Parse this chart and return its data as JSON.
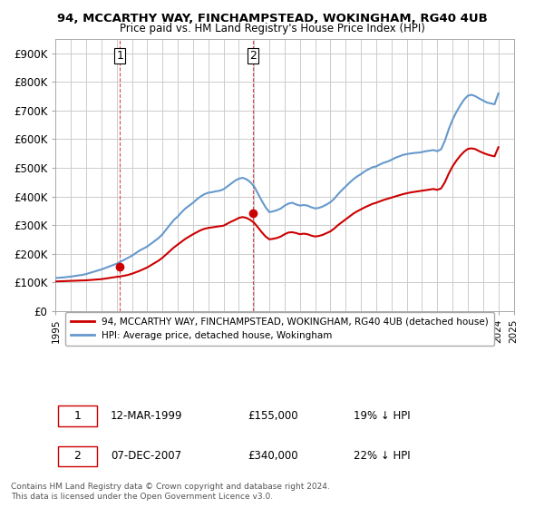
{
  "title_line1": "94, MCCARTHY WAY, FINCHAMPSTEAD, WOKINGHAM, RG40 4UB",
  "title_line2": "Price paid vs. HM Land Registry's House Price Index (HPI)",
  "xlabel": "",
  "ylabel": "",
  "ylim": [
    0,
    950000
  ],
  "yticks": [
    0,
    100000,
    200000,
    300000,
    400000,
    500000,
    600000,
    700000,
    800000,
    900000
  ],
  "ytick_labels": [
    "£0",
    "£100K",
    "£200K",
    "£300K",
    "£400K",
    "£500K",
    "£600K",
    "£700K",
    "£800K",
    "£900K"
  ],
  "hpi_color": "#6699cc",
  "price_color": "#cc0000",
  "annotation_color": "#cc0000",
  "grid_color": "#cccccc",
  "background_color": "#ffffff",
  "legend_label_red": "94, MCCARTHY WAY, FINCHAMPSTEAD, WOKINGHAM, RG40 4UB (detached house)",
  "legend_label_blue": "HPI: Average price, detached house, Wokingham",
  "footer": "Contains HM Land Registry data © Crown copyright and database right 2024.\nThis data is licensed under the Open Government Licence v3.0.",
  "sale1_label": "1",
  "sale1_date": "12-MAR-1999",
  "sale1_price": "£155,000",
  "sale1_hpi": "19% ↓ HPI",
  "sale1_x": 1999.2,
  "sale1_y": 155000,
  "sale2_label": "2",
  "sale2_date": "07-DEC-2007",
  "sale2_price": "£340,000",
  "sale2_hpi": "22% ↓ HPI",
  "sale2_x": 2007.92,
  "sale2_y": 340000,
  "hpi_years": [
    1995.0,
    1995.25,
    1995.5,
    1995.75,
    1996.0,
    1996.25,
    1996.5,
    1996.75,
    1997.0,
    1997.25,
    1997.5,
    1997.75,
    1998.0,
    1998.25,
    1998.5,
    1998.75,
    1999.0,
    1999.25,
    1999.5,
    1999.75,
    2000.0,
    2000.25,
    2000.5,
    2000.75,
    2001.0,
    2001.25,
    2001.5,
    2001.75,
    2002.0,
    2002.25,
    2002.5,
    2002.75,
    2003.0,
    2003.25,
    2003.5,
    2003.75,
    2004.0,
    2004.25,
    2004.5,
    2004.75,
    2005.0,
    2005.25,
    2005.5,
    2005.75,
    2006.0,
    2006.25,
    2006.5,
    2006.75,
    2007.0,
    2007.25,
    2007.5,
    2007.75,
    2008.0,
    2008.25,
    2008.5,
    2008.75,
    2009.0,
    2009.25,
    2009.5,
    2009.75,
    2010.0,
    2010.25,
    2010.5,
    2010.75,
    2011.0,
    2011.25,
    2011.5,
    2011.75,
    2012.0,
    2012.25,
    2012.5,
    2012.75,
    2013.0,
    2013.25,
    2013.5,
    2013.75,
    2014.0,
    2014.25,
    2014.5,
    2014.75,
    2015.0,
    2015.25,
    2015.5,
    2015.75,
    2016.0,
    2016.25,
    2016.5,
    2016.75,
    2017.0,
    2017.25,
    2017.5,
    2017.75,
    2018.0,
    2018.25,
    2018.5,
    2018.75,
    2019.0,
    2019.25,
    2019.5,
    2019.75,
    2020.0,
    2020.25,
    2020.5,
    2020.75,
    2021.0,
    2021.25,
    2021.5,
    2021.75,
    2022.0,
    2022.25,
    2022.5,
    2022.75,
    2023.0,
    2023.25,
    2023.5,
    2023.75,
    2024.0
  ],
  "hpi_values": [
    115000,
    116000,
    117000,
    118500,
    120000,
    122000,
    124000,
    126000,
    129000,
    133000,
    137000,
    141000,
    145000,
    150000,
    155000,
    160000,
    165000,
    172000,
    179000,
    186000,
    193000,
    202000,
    211000,
    218000,
    225000,
    235000,
    245000,
    255000,
    268000,
    285000,
    302000,
    318000,
    330000,
    345000,
    358000,
    368000,
    378000,
    390000,
    400000,
    408000,
    413000,
    415000,
    418000,
    420000,
    425000,
    435000,
    445000,
    455000,
    462000,
    465000,
    460000,
    450000,
    435000,
    410000,
    385000,
    362000,
    345000,
    348000,
    352000,
    358000,
    368000,
    375000,
    378000,
    372000,
    368000,
    370000,
    368000,
    362000,
    358000,
    360000,
    365000,
    372000,
    380000,
    392000,
    408000,
    422000,
    435000,
    448000,
    460000,
    470000,
    478000,
    488000,
    495000,
    502000,
    505000,
    512000,
    518000,
    522000,
    528000,
    535000,
    540000,
    545000,
    548000,
    550000,
    552000,
    553000,
    555000,
    558000,
    560000,
    562000,
    558000,
    565000,
    595000,
    635000,
    668000,
    695000,
    718000,
    738000,
    752000,
    755000,
    750000,
    742000,
    735000,
    728000,
    725000,
    722000,
    760000
  ],
  "price_years": [
    1995.0,
    1995.25,
    1995.5,
    1995.75,
    1996.0,
    1996.25,
    1996.5,
    1996.75,
    1997.0,
    1997.25,
    1997.5,
    1997.75,
    1998.0,
    1998.25,
    1998.5,
    1998.75,
    1999.0,
    1999.25,
    1999.5,
    1999.75,
    2000.0,
    2000.25,
    2000.5,
    2000.75,
    2001.0,
    2001.25,
    2001.5,
    2001.75,
    2002.0,
    2002.25,
    2002.5,
    2002.75,
    2003.0,
    2003.25,
    2003.5,
    2003.75,
    2004.0,
    2004.25,
    2004.5,
    2004.75,
    2005.0,
    2005.25,
    2005.5,
    2005.75,
    2006.0,
    2006.25,
    2006.5,
    2006.75,
    2007.0,
    2007.25,
    2007.5,
    2007.75,
    2008.0,
    2008.25,
    2008.5,
    2008.75,
    2009.0,
    2009.25,
    2009.5,
    2009.75,
    2010.0,
    2010.25,
    2010.5,
    2010.75,
    2011.0,
    2011.25,
    2011.5,
    2011.75,
    2012.0,
    2012.25,
    2012.5,
    2012.75,
    2013.0,
    2013.25,
    2013.5,
    2013.75,
    2014.0,
    2014.25,
    2014.5,
    2014.75,
    2015.0,
    2015.25,
    2015.5,
    2015.75,
    2016.0,
    2016.25,
    2016.5,
    2016.75,
    2017.0,
    2017.25,
    2017.5,
    2017.75,
    2018.0,
    2018.25,
    2018.5,
    2018.75,
    2019.0,
    2019.25,
    2019.5,
    2019.75,
    2020.0,
    2020.25,
    2020.5,
    2020.75,
    2021.0,
    2021.25,
    2021.5,
    2021.75,
    2022.0,
    2022.25,
    2022.5,
    2022.75,
    2023.0,
    2023.25,
    2023.5,
    2023.75,
    2024.0
  ],
  "price_values": [
    103000,
    103500,
    104000,
    104500,
    105000,
    105500,
    106000,
    106500,
    107000,
    108000,
    109000,
    110000,
    111000,
    113000,
    115000,
    117000,
    119000,
    121000,
    123000,
    126000,
    130000,
    135000,
    140000,
    146000,
    152000,
    160000,
    168000,
    176000,
    186000,
    198000,
    210000,
    222000,
    232000,
    242000,
    252000,
    260000,
    268000,
    275000,
    282000,
    287000,
    290000,
    292000,
    294000,
    296000,
    298000,
    305000,
    312000,
    318000,
    325000,
    328000,
    325000,
    318000,
    308000,
    292000,
    275000,
    260000,
    250000,
    252000,
    255000,
    260000,
    268000,
    274000,
    275000,
    272000,
    268000,
    270000,
    268000,
    263000,
    260000,
    262000,
    266000,
    272000,
    278000,
    288000,
    300000,
    310000,
    320000,
    330000,
    340000,
    348000,
    355000,
    362000,
    368000,
    374000,
    378000,
    383000,
    388000,
    392000,
    396000,
    400000,
    404000,
    408000,
    411000,
    414000,
    416000,
    418000,
    420000,
    422000,
    424000,
    426000,
    423000,
    428000,
    450000,
    480000,
    505000,
    525000,
    542000,
    556000,
    566000,
    568000,
    565000,
    558000,
    552000,
    547000,
    543000,
    540000,
    572000
  ],
  "xlim": [
    1995.0,
    2024.5
  ],
  "xtick_years": [
    1995,
    1996,
    1997,
    1998,
    1999,
    2000,
    2001,
    2002,
    2003,
    2004,
    2005,
    2006,
    2007,
    2008,
    2009,
    2010,
    2011,
    2012,
    2013,
    2014,
    2015,
    2016,
    2017,
    2018,
    2019,
    2020,
    2021,
    2022,
    2023,
    2024,
    2025
  ]
}
